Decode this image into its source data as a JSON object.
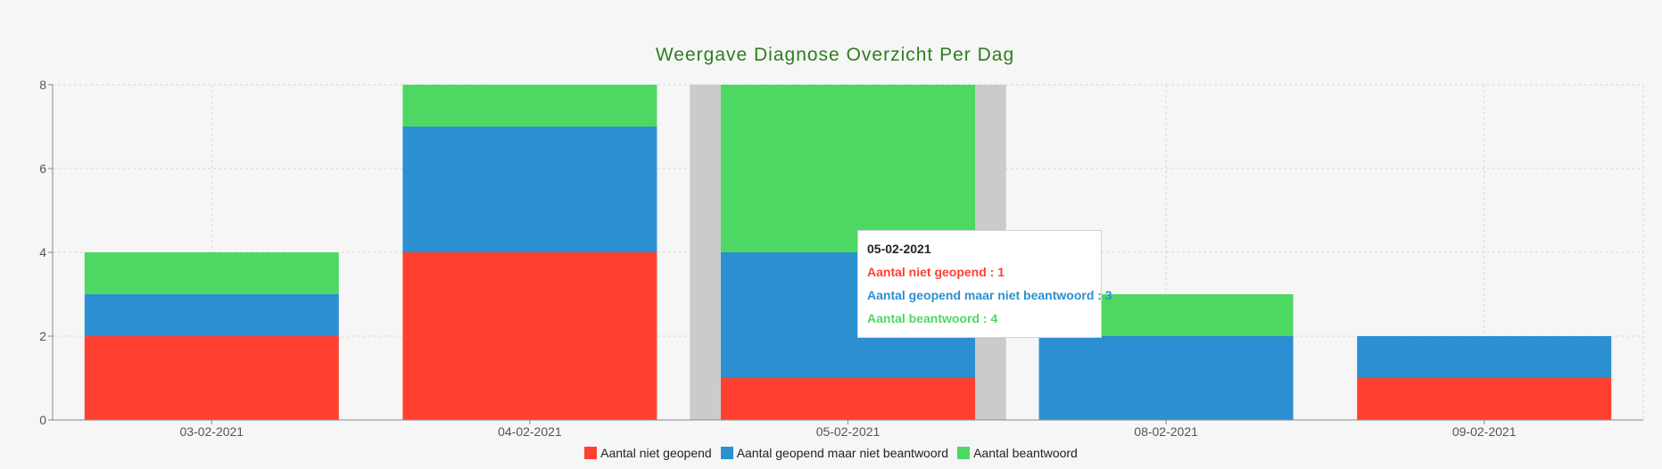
{
  "chart_data": {
    "type": "bar",
    "stacked": true,
    "title": "Weergave Diagnose Overzicht Per Dag",
    "categories": [
      "03-02-2021",
      "04-02-2021",
      "05-02-2021",
      "08-02-2021",
      "09-02-2021"
    ],
    "series": [
      {
        "name": "Aantal niet geopend",
        "color": "#ff4030",
        "values": [
          2,
          4,
          1,
          0,
          1
        ]
      },
      {
        "name": "Aantal geopend maar niet beantwoord",
        "color": "#2b8fd2",
        "values": [
          1,
          3,
          3,
          2,
          1
        ]
      },
      {
        "name": "Aantal beantwoord",
        "color": "#4dd863",
        "values": [
          1,
          1,
          4,
          1,
          0
        ]
      }
    ],
    "ylim": [
      0,
      8
    ],
    "yticks": [
      0,
      2,
      4,
      6,
      8
    ],
    "grid": true,
    "legend_position": "bottom",
    "highlighted_category": "05-02-2021",
    "title_color": "#2e7d1e"
  },
  "tooltip": {
    "date": "05-02-2021",
    "rows": [
      {
        "text": "Aantal niet geopend : 1",
        "color": "#ff4030"
      },
      {
        "text": "Aantal geopend maar niet beantwoord : 3",
        "color": "#2b8fd2"
      },
      {
        "text": "Aantal beantwoord : 4",
        "color": "#4dd863"
      }
    ]
  }
}
